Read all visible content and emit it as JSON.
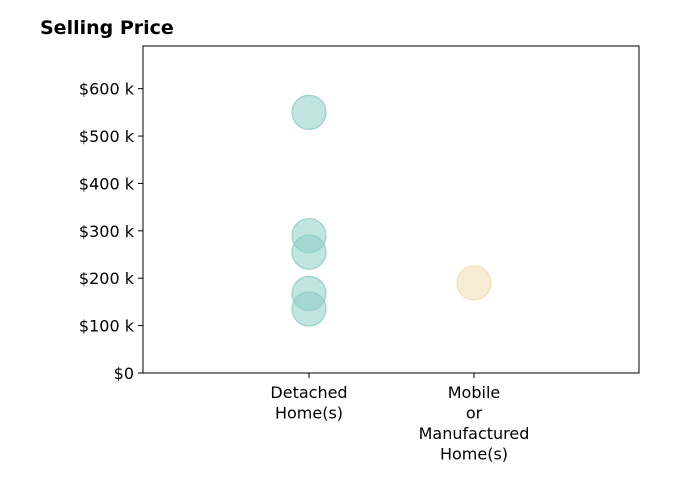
{
  "chart_data": {
    "type": "scatter",
    "title": "Selling Price",
    "xlabel": "",
    "ylabel": "",
    "categories": [
      [
        "Detached",
        "Home(s)"
      ],
      [
        "Mobile",
        "or",
        "Manufactured",
        "Home(s)"
      ]
    ],
    "yticks": [
      {
        "value": 0,
        "label": "$0"
      },
      {
        "value": 100000,
        "label": "$100 k"
      },
      {
        "value": 200000,
        "label": "$200 k"
      },
      {
        "value": 300000,
        "label": "$300 k"
      },
      {
        "value": 400000,
        "label": "$400 k"
      },
      {
        "value": 500000,
        "label": "$500 k"
      },
      {
        "value": 600000,
        "label": "$600 k"
      }
    ],
    "ylim": [
      0,
      690000
    ],
    "grid": false,
    "legend": "none",
    "series": [
      {
        "category_index": 0,
        "color": "#8ecdc6",
        "values": [
          550000,
          290000,
          255000,
          168000,
          135000
        ]
      },
      {
        "category_index": 1,
        "color": "#f3ddb0",
        "values": [
          190000
        ]
      }
    ]
  }
}
